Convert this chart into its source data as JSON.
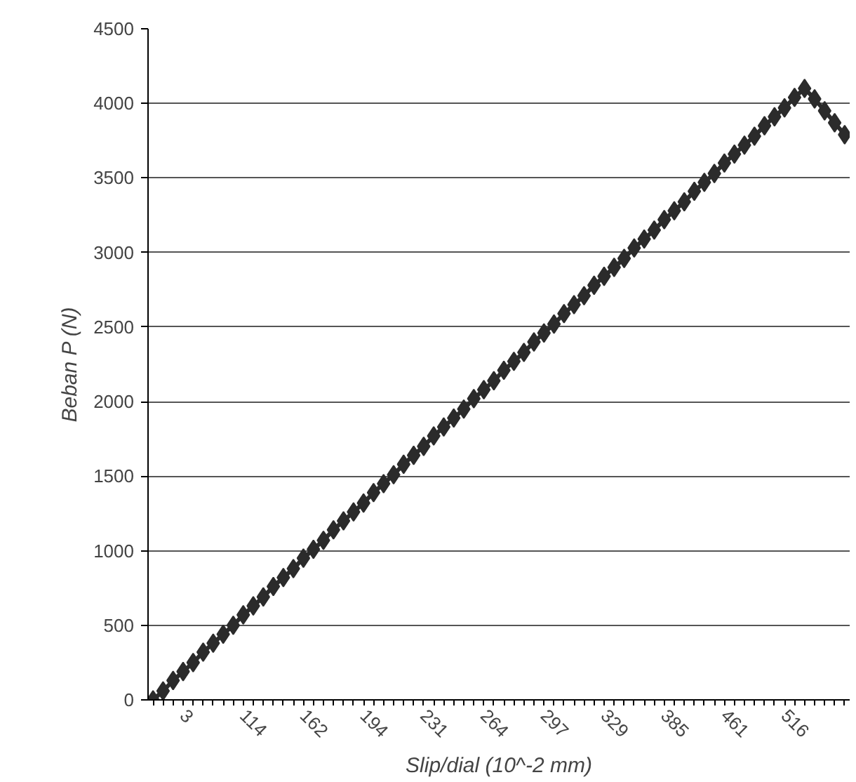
{
  "chart_data": {
    "type": "line",
    "xlabel": "Slip/dial (10^-2 mm)",
    "ylabel": "Beban P (N)",
    "categories": [
      null,
      null,
      null,
      "3",
      null,
      null,
      null,
      null,
      null,
      "114",
      null,
      null,
      null,
      null,
      null,
      "162",
      null,
      null,
      null,
      null,
      null,
      "194",
      null,
      null,
      null,
      null,
      null,
      "231",
      null,
      null,
      null,
      null,
      null,
      "264",
      null,
      null,
      null,
      null,
      null,
      "297",
      null,
      null,
      null,
      null,
      null,
      "329",
      null,
      null,
      null,
      null,
      null,
      "385",
      null,
      null,
      null,
      null,
      null,
      "461",
      null,
      null,
      null,
      null,
      null,
      "516",
      null,
      null,
      null,
      null,
      null,
      null
    ],
    "series": [
      {
        "color": "#2b2b2b",
        "values": [
          0,
          60,
          130,
          190,
          250,
          320,
          380,
          440,
          500,
          570,
          630,
          690,
          760,
          820,
          880,
          950,
          1010,
          1070,
          1140,
          1200,
          1260,
          1320,
          1390,
          1450,
          1510,
          1580,
          1640,
          1700,
          1770,
          1830,
          1890,
          1950,
          2020,
          2080,
          2140,
          2210,
          2270,
          2330,
          2400,
          2460,
          2520,
          2590,
          2650,
          2710,
          2780,
          2840,
          2900,
          2960,
          3030,
          3090,
          3150,
          3220,
          3280,
          3340,
          3410,
          3470,
          3530,
          3600,
          3660,
          3720,
          3780,
          3850,
          3910,
          3970,
          4040,
          4100,
          4030,
          3950,
          3870,
          3790
        ]
      }
    ],
    "ylim": [
      0,
      4500
    ],
    "yticks": [
      0,
      500,
      1000,
      1500,
      2000,
      2500,
      3000,
      3500,
      4000,
      4500
    ],
    "grid": "y",
    "marker": "diamond",
    "line_style": "solid"
  }
}
